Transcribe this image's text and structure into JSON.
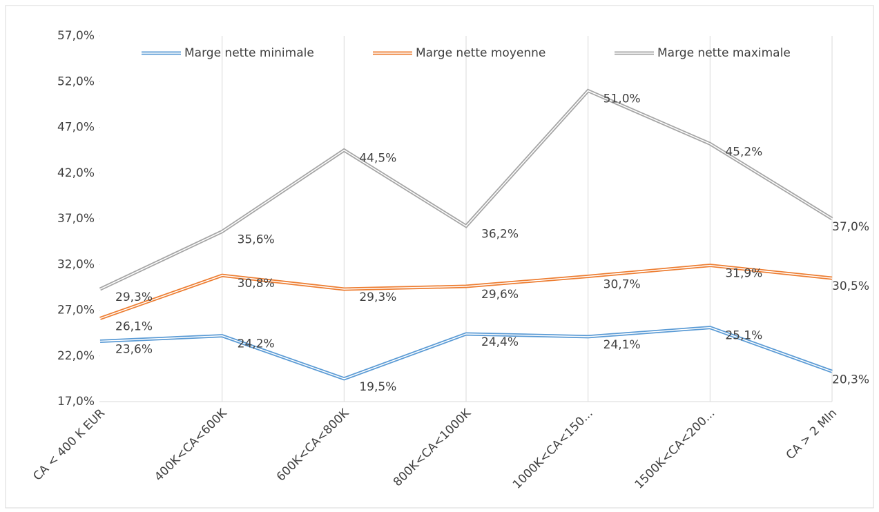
{
  "chart_data": {
    "type": "line",
    "categories": [
      "CA < 400 K EUR",
      "400K<CA<600K",
      "600K<CA<800K",
      "800K<CA<1000K",
      "1000K<CA<150...",
      "1500K<CA<200...",
      "CA > 2 Mln"
    ],
    "series": [
      {
        "name": "Marge nette minimale",
        "color": "#5b9bd5",
        "values": [
          23.6,
          24.2,
          19.5,
          24.4,
          24.1,
          25.1,
          20.3
        ],
        "value_labels": [
          "23,6%",
          "24,2%",
          "19,5%",
          "24,4%",
          "24,1%",
          "25,1%",
          "20,3%"
        ]
      },
      {
        "name": "Marge nette moyenne",
        "color": "#ed7d31",
        "values": [
          26.1,
          30.8,
          29.3,
          29.6,
          30.7,
          31.9,
          30.5
        ],
        "value_labels": [
          "26,1%",
          "30,8%",
          "29,3%",
          "29,6%",
          "30,7%",
          "31,9%",
          "30,5%"
        ]
      },
      {
        "name": "Marge nette maximale",
        "color": "#a5a5a5",
        "values": [
          29.3,
          35.6,
          44.5,
          36.2,
          51.0,
          45.2,
          37.0
        ],
        "value_labels": [
          "29,3%",
          "35,6%",
          "44,5%",
          "36,2%",
          "51,0%",
          "45,2%",
          "37,0%"
        ]
      }
    ],
    "ylim": [
      17,
      57
    ],
    "yticks": [
      {
        "value": 17,
        "label": "17,0%"
      },
      {
        "value": 22,
        "label": "22,0%"
      },
      {
        "value": 27,
        "label": "27,0%"
      },
      {
        "value": 32,
        "label": "32,0%"
      },
      {
        "value": 37,
        "label": "37,0%"
      },
      {
        "value": 42,
        "label": "42,0%"
      },
      {
        "value": 47,
        "label": "47,0%"
      },
      {
        "value": 52,
        "label": "52,0%"
      },
      {
        "value": 57,
        "label": "57,0%"
      }
    ],
    "legend": "top"
  }
}
